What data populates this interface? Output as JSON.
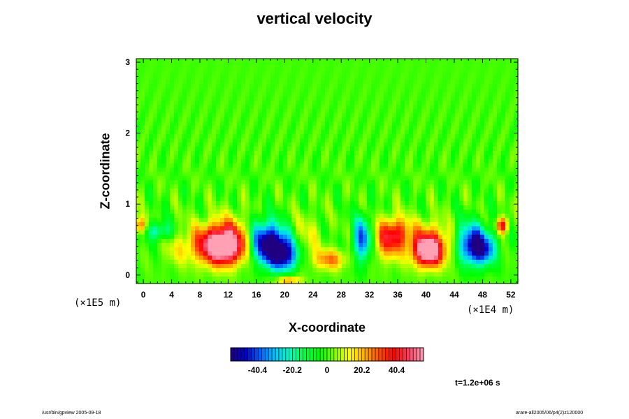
{
  "chart_data": {
    "type": "heatmap",
    "title": "vertical velocity",
    "xlabel": "X-coordinate",
    "ylabel": "Z-coordinate",
    "x_scale_note": "(×1E4 m)",
    "z_scale_note": "(×1E5 m)",
    "xlim": [
      -1,
      53
    ],
    "ylim": [
      -0.12,
      3.05
    ],
    "x_ticks": [
      0,
      4,
      8,
      12,
      16,
      20,
      24,
      28,
      32,
      36,
      40,
      44,
      48,
      52
    ],
    "y_ticks": [
      0,
      1,
      2,
      3
    ],
    "colorbar": {
      "min": -56,
      "max": 56,
      "ticks": [
        -40.4,
        -20.2,
        0,
        20.2,
        40.4
      ],
      "tick_labels": [
        "-40.4",
        "-20.2",
        "0",
        "20.2",
        "40.4"
      ],
      "colormap": [
        "#200080",
        "#0000c8",
        "#0060ff",
        "#00c8ff",
        "#00ffc0",
        "#00ff40",
        "#00ff00",
        "#80ff00",
        "#ffff00",
        "#ffb000",
        "#ff5000",
        "#ff0000",
        "#ff4060",
        "#ffa0b4"
      ]
    },
    "features": [
      {
        "x": 11.5,
        "z": 0.38,
        "value": 48,
        "sx": 2.0,
        "sz": 0.17
      },
      {
        "x": 9.5,
        "z": 0.45,
        "value": 30,
        "sx": 2.2,
        "sz": 0.2
      },
      {
        "x": 13.0,
        "z": 0.55,
        "value": 22,
        "sx": 2.0,
        "sz": 0.22
      },
      {
        "x": 18.5,
        "z": 0.38,
        "value": -46,
        "sx": 2.0,
        "sz": 0.18
      },
      {
        "x": 17.0,
        "z": 0.55,
        "value": -30,
        "sx": 1.8,
        "sz": 0.2
      },
      {
        "x": 20.0,
        "z": 0.25,
        "value": -32,
        "sx": 1.5,
        "sz": 0.15
      },
      {
        "x": 26.5,
        "z": 0.22,
        "value": 26,
        "sx": 1.6,
        "sz": 0.1
      },
      {
        "x": 31.0,
        "z": 0.5,
        "value": -42,
        "sx": 0.9,
        "sz": 0.22
      },
      {
        "x": 34.5,
        "z": 0.5,
        "value": 30,
        "sx": 1.5,
        "sz": 0.2
      },
      {
        "x": 36.0,
        "z": 0.6,
        "value": 22,
        "sx": 1.2,
        "sz": 0.15
      },
      {
        "x": 40.3,
        "z": 0.32,
        "value": 50,
        "sx": 1.3,
        "sz": 0.14
      },
      {
        "x": 40.0,
        "z": 0.45,
        "value": 30,
        "sx": 2.0,
        "sz": 0.2
      },
      {
        "x": 46.5,
        "z": 0.45,
        "value": -44,
        "sx": 1.7,
        "sz": 0.2
      },
      {
        "x": 48.0,
        "z": 0.35,
        "value": -30,
        "sx": 1.4,
        "sz": 0.15
      },
      {
        "x": 50.8,
        "z": 0.7,
        "value": 42,
        "sx": 0.6,
        "sz": 0.08
      },
      {
        "x": 2.2,
        "z": 0.62,
        "value": -24,
        "sx": 1.2,
        "sz": 0.09
      },
      {
        "x": -0.5,
        "z": 0.7,
        "value": 30,
        "sx": 0.6,
        "sz": 0.08
      },
      {
        "x": 5.0,
        "z": 0.35,
        "value": 10,
        "sx": 1.5,
        "sz": 0.15
      },
      {
        "x": 23.0,
        "z": 0.5,
        "value": 12,
        "sx": 1.5,
        "sz": 0.25
      },
      {
        "x": 43.0,
        "z": 0.4,
        "value": 10,
        "sx": 1.5,
        "sz": 0.2
      },
      {
        "x": 20.5,
        "z": -0.08,
        "value": 28,
        "sx": 1.2,
        "sz": 0.05
      }
    ]
  },
  "annotations": {
    "z_scale": "(×1E5 m)",
    "x_scale": "(×1E4 m)",
    "time": "t=1.2e+06 s",
    "footer_left": "/usr/bin/gpview 2005-09-18",
    "footer_right": "arare-all2005/06/p4(2)z120000"
  }
}
